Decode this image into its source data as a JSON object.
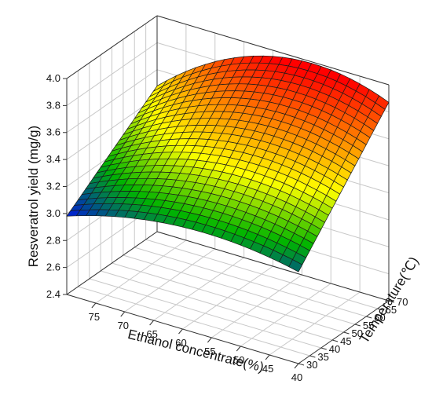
{
  "chart_data": {
    "type": "surface3d",
    "title": "",
    "xlabel": "Ethanol concentrate(%)",
    "ylabel": "Temperature(℃)",
    "zlabel": "Resveratrol yield (mg/g)",
    "x_ticks": [
      "40",
      "45",
      "50",
      "55",
      "60",
      "65",
      "70",
      "75"
    ],
    "y_ticks": [
      "30",
      "35",
      "40",
      "45",
      "50",
      "55",
      "60",
      "65",
      "70"
    ],
    "z_ticks": [
      "2.4",
      "2.6",
      "2.8",
      "3.0",
      "3.2",
      "3.4",
      "3.6",
      "3.8",
      "4.0"
    ],
    "xlim": [
      40,
      80
    ],
    "ylim": [
      30,
      70
    ],
    "zlim": [
      2.4,
      4.0
    ],
    "grid": true,
    "colormap": [
      "#0000ff",
      "#00b400",
      "#ffff00",
      "#ff8000",
      "#ff0000"
    ],
    "surface": {
      "x": [
        80,
        75,
        70,
        65,
        60,
        55,
        50,
        45,
        40
      ],
      "y": [
        30,
        35,
        40,
        45,
        50,
        55,
        60,
        65,
        70
      ],
      "z_corners": {
        "x80_y30": 2.98,
        "x40_y30": 3.08,
        "x80_y70": 3.48,
        "x40_y70": 3.87
      },
      "z_max": 3.95
    }
  }
}
